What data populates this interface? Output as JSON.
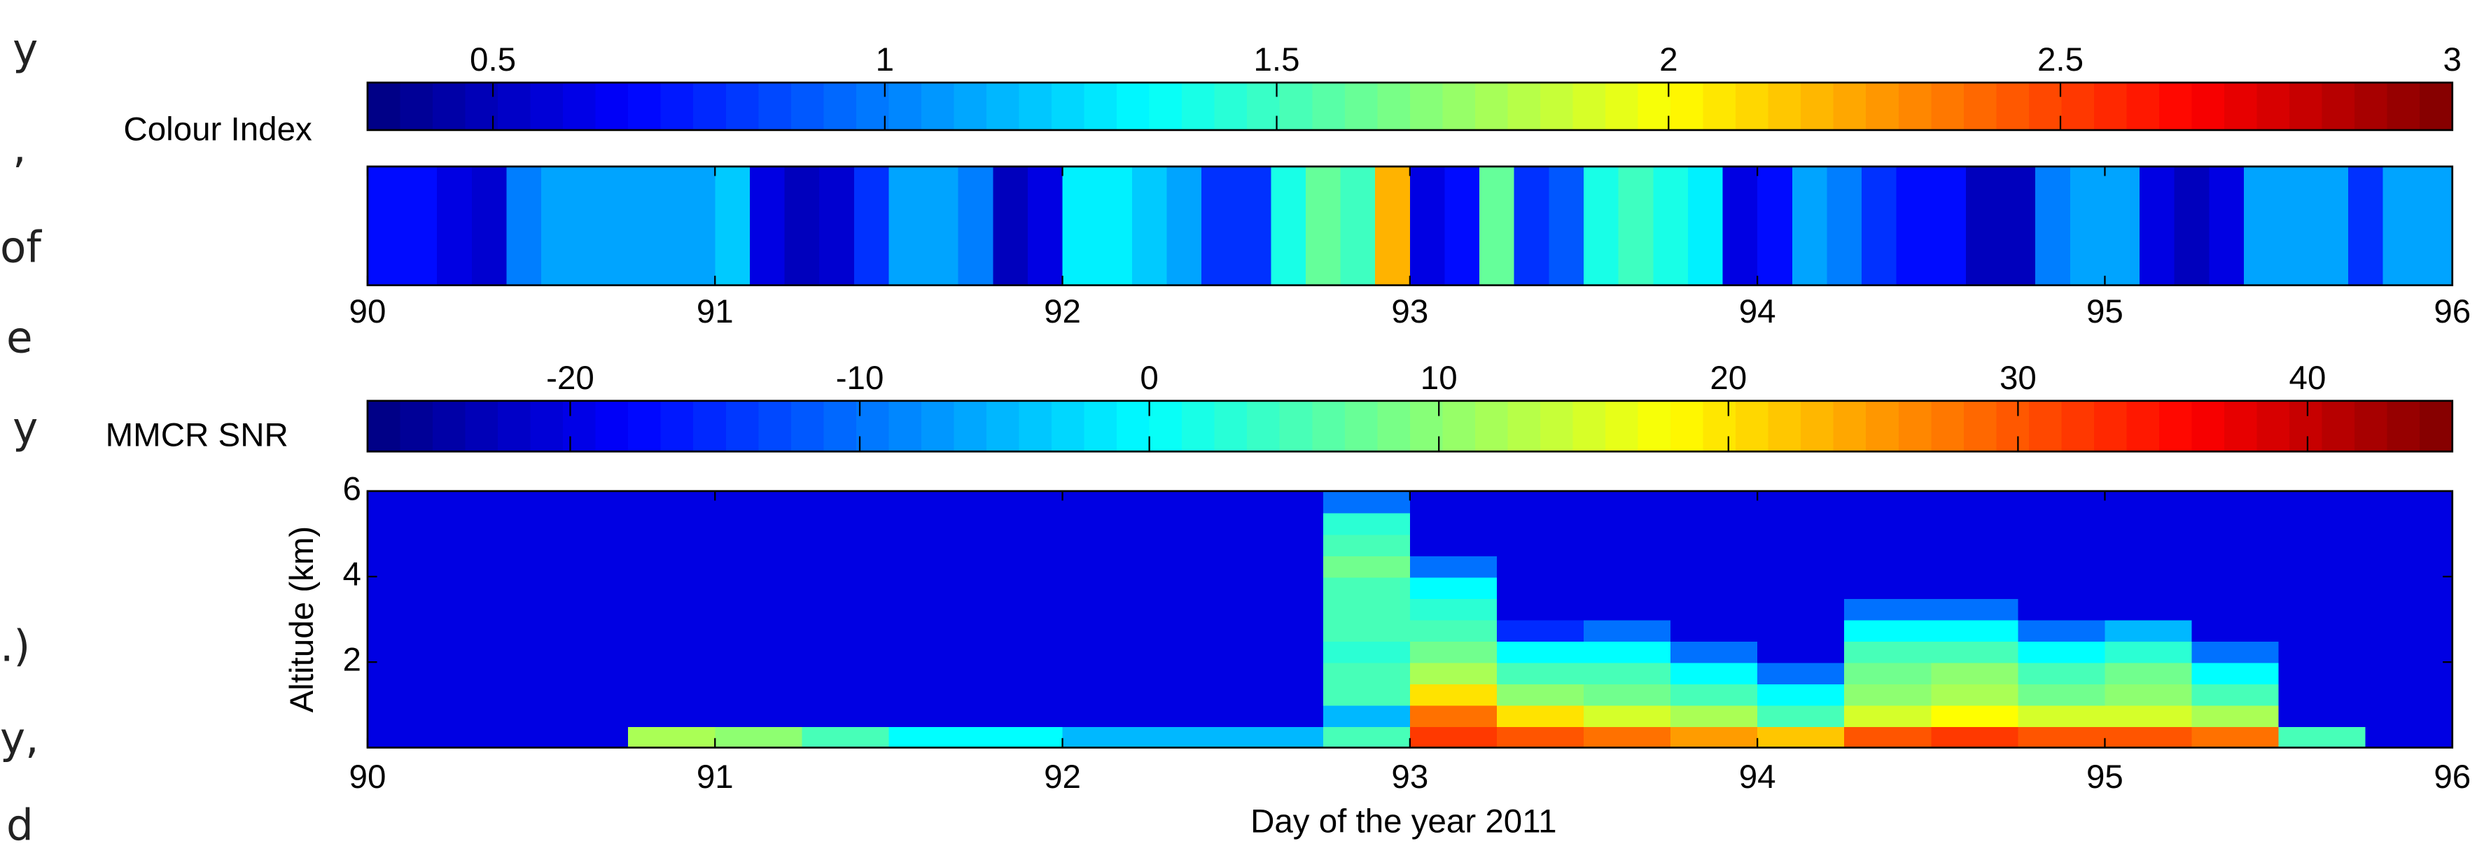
{
  "margin_text": [
    "y",
    ",",
    "of",
    "e",
    "y",
    ".)",
    "y,",
    "d"
  ],
  "chart_data": [
    {
      "type": "strip",
      "colorbar_label": "Colour Index",
      "clim": [
        0.34,
        3
      ],
      "cticks": [
        0.5,
        1,
        1.5,
        2,
        2.5,
        3
      ],
      "xlim": [
        90,
        96
      ],
      "xticks": [
        90,
        91,
        92,
        93,
        94,
        95,
        96
      ],
      "x": [
        90.0,
        90.1,
        90.2,
        90.3,
        90.4,
        90.5,
        90.6,
        90.7,
        90.8,
        90.9,
        91.0,
        91.1,
        91.2,
        91.3,
        91.4,
        91.5,
        91.6,
        91.7,
        91.8,
        91.9,
        92.0,
        92.1,
        92.2,
        92.3,
        92.4,
        92.5,
        92.6,
        92.7,
        92.8,
        92.9,
        93.0,
        93.1,
        93.2,
        93.3,
        93.4,
        93.5,
        93.6,
        93.7,
        93.8,
        93.9,
        94.0,
        94.1,
        94.2,
        94.3,
        94.4,
        94.5,
        94.6,
        94.7,
        94.8,
        94.9,
        95.0,
        95.1,
        95.2,
        95.3,
        95.4,
        95.5,
        95.6,
        95.7,
        95.8,
        95.9
      ],
      "values": [
        0.7,
        0.7,
        0.6,
        0.55,
        1.0,
        1.1,
        1.1,
        1.1,
        1.1,
        1.1,
        1.2,
        0.6,
        0.5,
        0.55,
        0.8,
        1.1,
        1.1,
        1.0,
        0.5,
        0.6,
        1.3,
        1.3,
        1.2,
        1.1,
        0.8,
        0.8,
        1.4,
        1.6,
        1.5,
        2.2,
        0.6,
        0.7,
        1.6,
        0.8,
        0.9,
        1.4,
        1.5,
        1.4,
        1.3,
        0.6,
        0.7,
        1.1,
        1.0,
        0.8,
        0.7,
        0.7,
        0.5,
        0.5,
        1.0,
        1.1,
        1.1,
        0.6,
        0.5,
        0.6,
        1.1,
        1.1,
        1.1,
        0.8,
        1.1,
        1.1
      ]
    },
    {
      "type": "heatmap",
      "colorbar_label": "MMCR SNR",
      "clim": [
        -27,
        45
      ],
      "cticks": [
        -20,
        -10,
        0,
        10,
        20,
        30,
        40
      ],
      "xlim": [
        90,
        96
      ],
      "xticks": [
        90,
        91,
        92,
        93,
        94,
        95,
        96
      ],
      "ylim": [
        0,
        6
      ],
      "yticks": [
        2,
        4,
        6
      ],
      "xlabel": "Day of the year 2011",
      "ylabel": "Altitude (km)",
      "x": [
        90.0,
        90.25,
        90.5,
        90.75,
        91.0,
        91.25,
        91.5,
        91.75,
        92.0,
        92.25,
        92.5,
        92.75,
        93.0,
        93.25,
        93.5,
        93.75,
        94.0,
        94.25,
        94.5,
        94.75,
        95.0,
        95.25,
        95.5,
        95.75
      ],
      "y": [
        0,
        0.5,
        1,
        1.5,
        2,
        2.5,
        3,
        3.5,
        4,
        4.5,
        5,
        5.5
      ],
      "values": [
        [
          -20,
          -20,
          -20,
          12,
          10,
          5,
          0,
          0,
          -5,
          -5,
          -5,
          5,
          32,
          30,
          28,
          25,
          22,
          30,
          32,
          30,
          30,
          28,
          5,
          -20
        ],
        [
          -20,
          -20,
          -20,
          -20,
          -20,
          -20,
          -20,
          -20,
          -20,
          -20,
          -20,
          -5,
          28,
          20,
          15,
          12,
          5,
          15,
          18,
          15,
          15,
          12,
          -20,
          -20
        ],
        [
          -20,
          -20,
          -20,
          -20,
          -20,
          -20,
          -20,
          -20,
          -20,
          -20,
          -20,
          5,
          20,
          10,
          8,
          5,
          0,
          10,
          12,
          8,
          10,
          5,
          -20,
          -20
        ],
        [
          -20,
          -20,
          -20,
          -20,
          -20,
          -20,
          -20,
          -20,
          -20,
          -20,
          -20,
          5,
          12,
          5,
          5,
          0,
          -10,
          8,
          10,
          5,
          8,
          0,
          -20,
          -20
        ],
        [
          -20,
          -20,
          -20,
          -20,
          -20,
          -20,
          -20,
          -20,
          -20,
          -20,
          -20,
          3,
          8,
          0,
          0,
          -10,
          -20,
          5,
          5,
          0,
          3,
          -10,
          -20,
          -20
        ],
        [
          -20,
          -20,
          -20,
          -20,
          -20,
          -20,
          -20,
          -20,
          -20,
          -20,
          -20,
          5,
          5,
          -15,
          -10,
          -20,
          -20,
          0,
          0,
          -10,
          -5,
          -20,
          -20,
          -20
        ],
        [
          -20,
          -20,
          -20,
          -20,
          -20,
          -20,
          -20,
          -20,
          -20,
          -20,
          -20,
          5,
          3,
          -20,
          -20,
          -20,
          -20,
          -10,
          -10,
          -20,
          -20,
          -20,
          -20,
          -20
        ],
        [
          -20,
          -20,
          -20,
          -20,
          -20,
          -20,
          -20,
          -20,
          -20,
          -20,
          -20,
          5,
          0,
          -20,
          -20,
          -20,
          -20,
          -20,
          -20,
          -20,
          -20,
          -20,
          -20,
          -20
        ],
        [
          -20,
          -20,
          -20,
          -20,
          -20,
          -20,
          -20,
          -20,
          -20,
          -20,
          -20,
          8,
          -10,
          -20,
          -20,
          -20,
          -20,
          -20,
          -20,
          -20,
          -20,
          -20,
          -20,
          -20
        ],
        [
          -20,
          -20,
          -20,
          -20,
          -20,
          -20,
          -20,
          -20,
          -20,
          -20,
          -20,
          5,
          -20,
          -20,
          -20,
          -20,
          -20,
          -20,
          -20,
          -20,
          -20,
          -20,
          -20,
          -20
        ],
        [
          -20,
          -20,
          -20,
          -20,
          -20,
          -20,
          -20,
          -20,
          -20,
          -20,
          -20,
          3,
          -20,
          -20,
          -20,
          -20,
          -20,
          -20,
          -20,
          -20,
          -20,
          -20,
          -20,
          -20
        ],
        [
          -20,
          -20,
          -20,
          -20,
          -20,
          -20,
          -20,
          -20,
          -20,
          -20,
          -20,
          -10,
          -20,
          -20,
          -20,
          -20,
          -20,
          -20,
          -20,
          -20,
          -20,
          -20,
          -20,
          -20
        ]
      ]
    }
  ]
}
